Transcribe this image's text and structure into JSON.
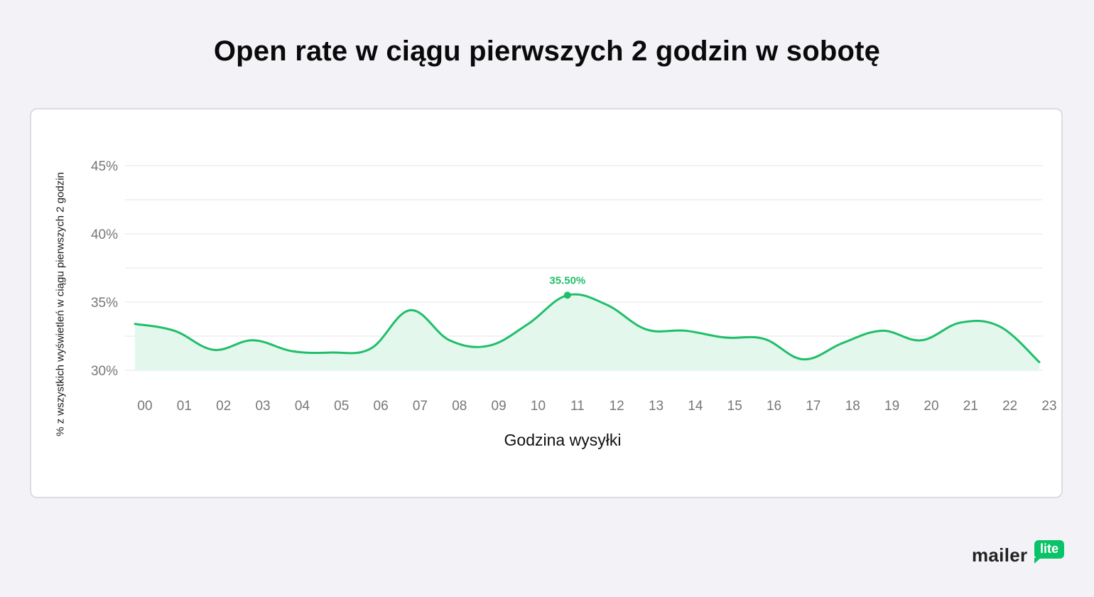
{
  "page": {
    "title": "Open rate w ciągu pierwszych 2 godzin w sobotę"
  },
  "logo": {
    "text": "mailer",
    "badge": "lite"
  },
  "colors": {
    "line": "#1fbf6a",
    "area": "#e3f7ec",
    "grid": "#e6e6ea",
    "tick": "#777777",
    "annotation": "#1fbf6a"
  },
  "chart_data": {
    "type": "area",
    "xlabel": "Godzina wysyłki",
    "ylabel": "% z wszystkich wyświetleń w ciągu pierwszych 2 godzin",
    "categories": [
      "00",
      "01",
      "02",
      "03",
      "04",
      "05",
      "06",
      "07",
      "08",
      "09",
      "10",
      "11",
      "12",
      "13",
      "14",
      "15",
      "16",
      "17",
      "18",
      "19",
      "20",
      "21",
      "22",
      "23"
    ],
    "series": [
      {
        "values": [
          33.4,
          32.9,
          31.5,
          32.2,
          31.4,
          31.3,
          31.6,
          34.4,
          32.2,
          31.8,
          33.4,
          35.5,
          34.8,
          33.0,
          32.9,
          32.4,
          32.3,
          30.8,
          32.0,
          32.9,
          32.2,
          33.5,
          33.2,
          30.6
        ]
      }
    ],
    "ylim": [
      30,
      45
    ],
    "yticks": [
      30,
      35,
      40,
      45
    ],
    "ytick_labels": [
      "30%",
      "35%",
      "40%",
      "45%"
    ],
    "grid": true,
    "annotation": {
      "category": "11",
      "value": 35.5,
      "label": "35.50%"
    }
  }
}
